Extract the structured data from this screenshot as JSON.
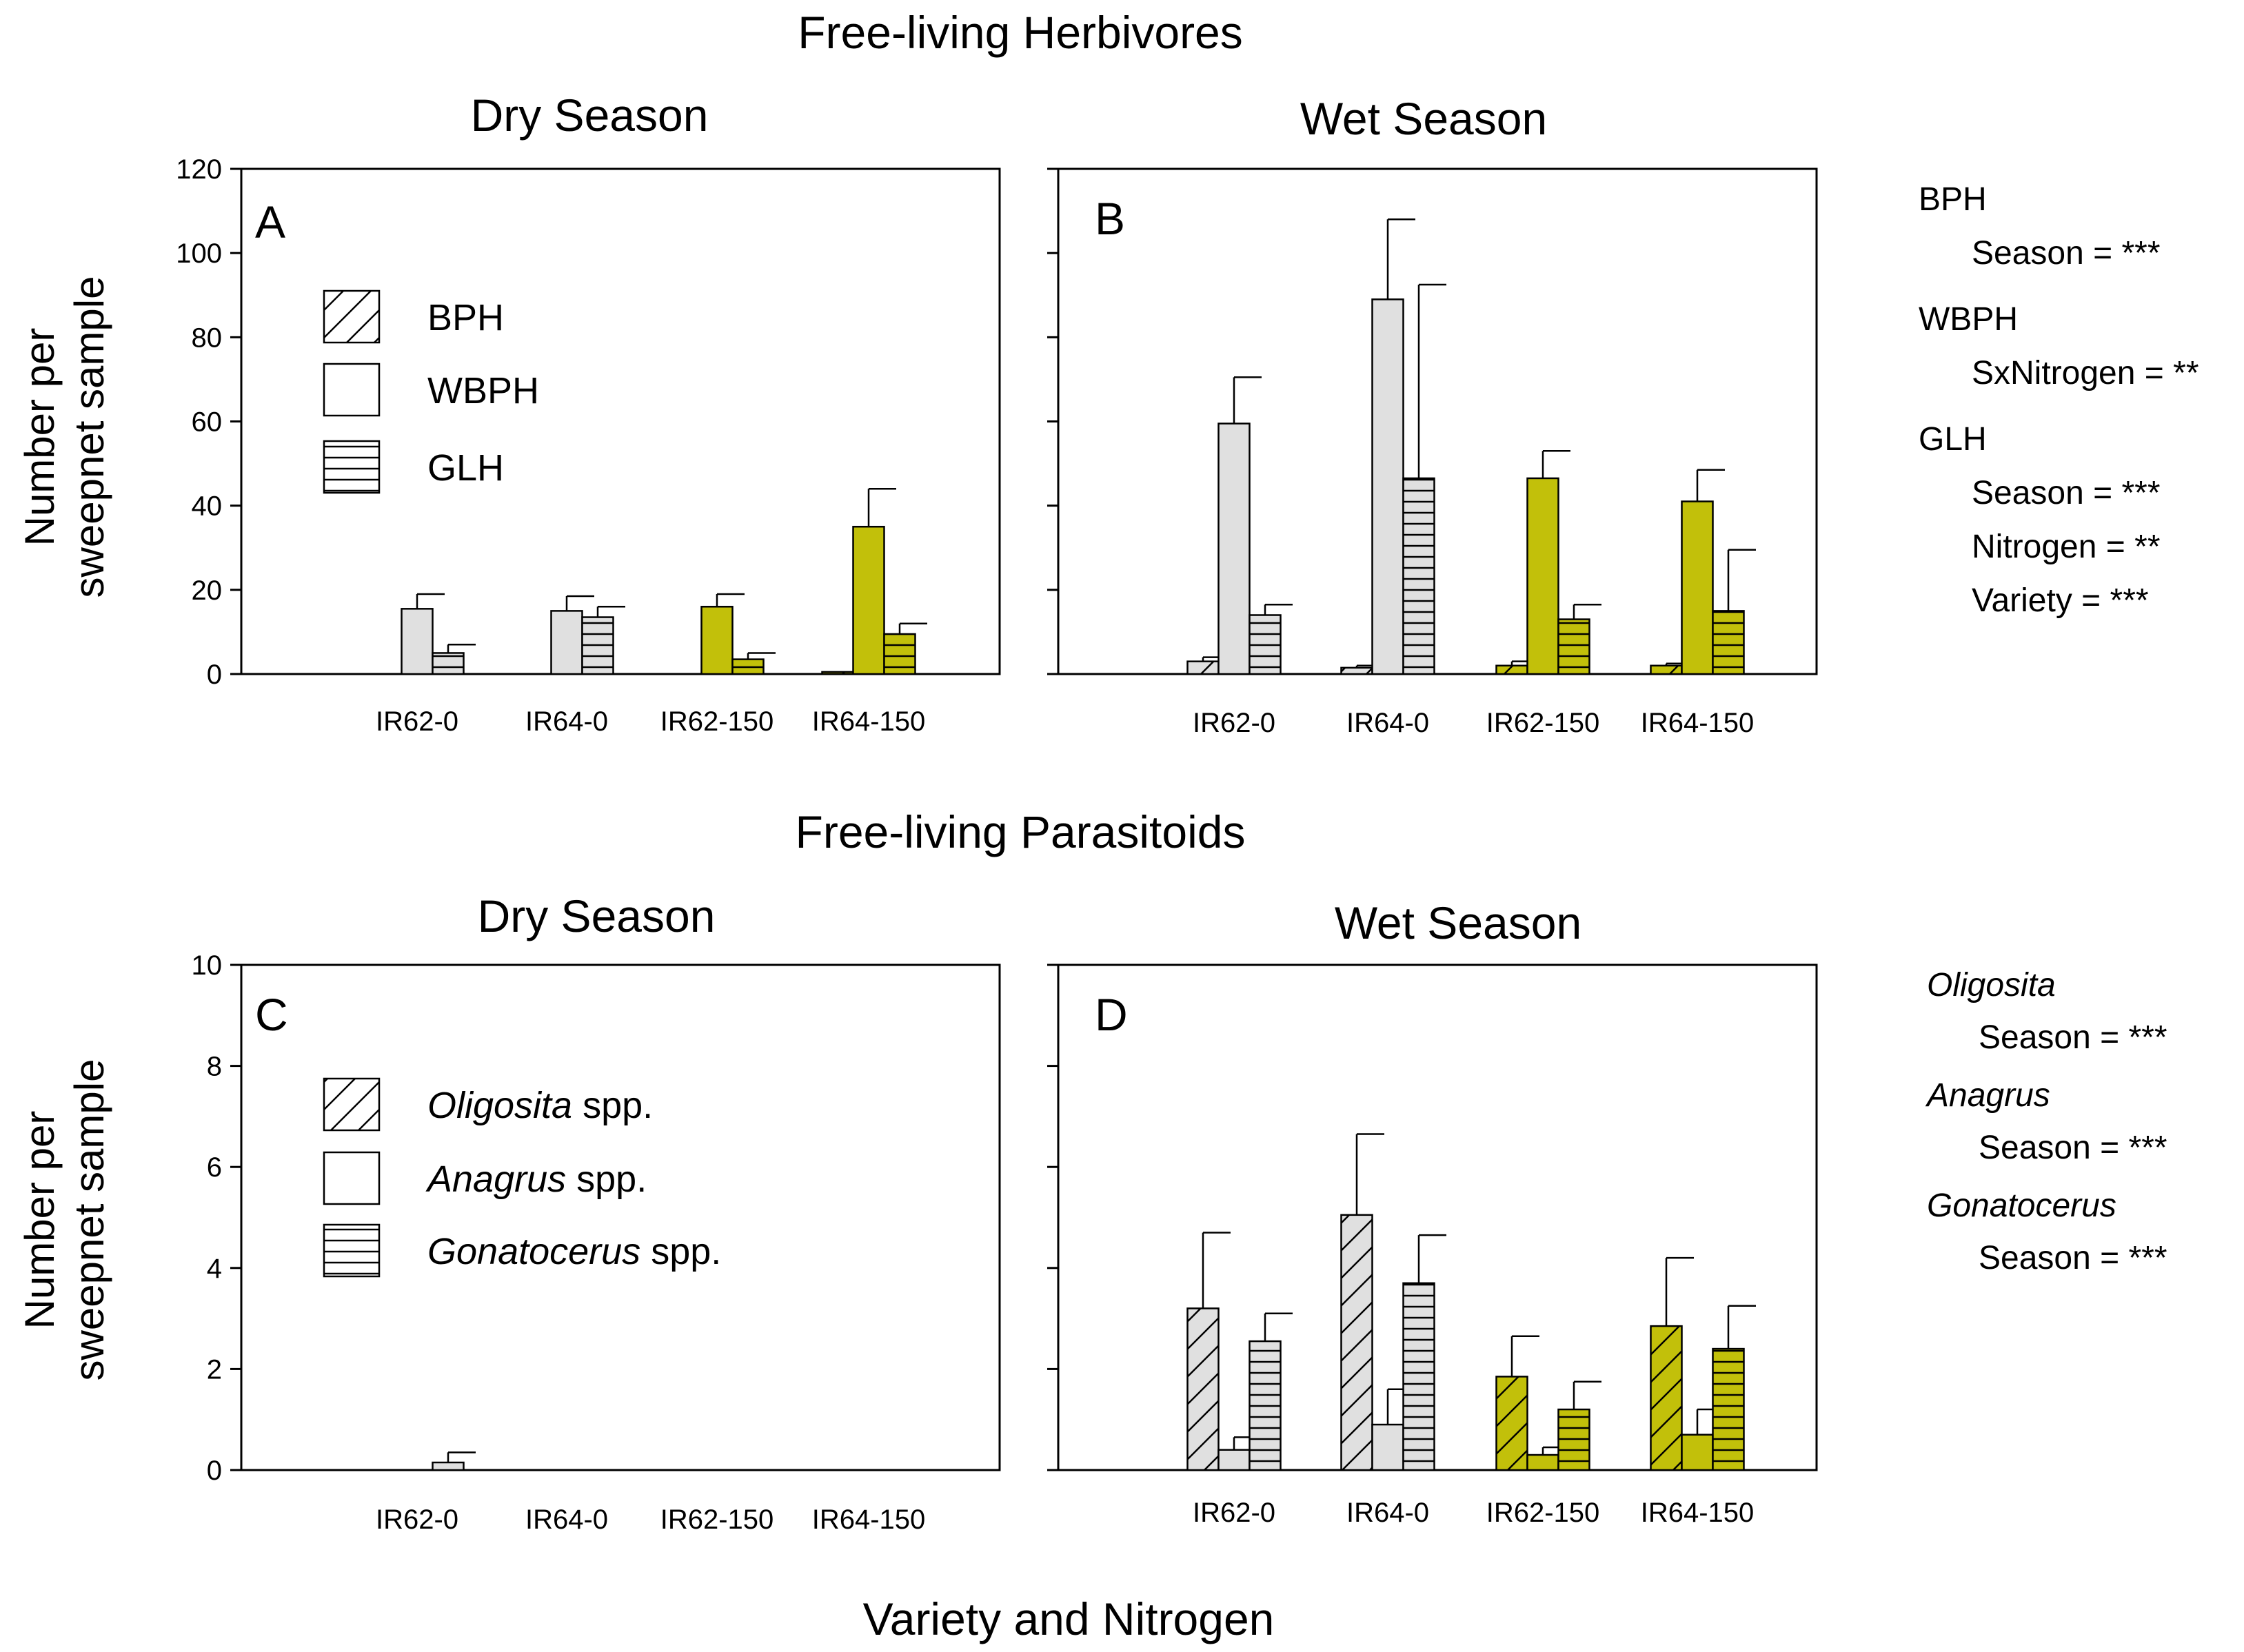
{
  "figure": {
    "herbivores_title": "Free-living Herbivores",
    "parasitoids_title": "Free-living Parasitoids",
    "x_axis_label": "Variety and Nitrogen"
  },
  "colors": {
    "unfertilized_fill": "#e0e0e0",
    "fertilized_fill": "#c2c00a",
    "stroke": "#000000"
  },
  "chart_data": [
    {
      "panel": "A",
      "type": "bar",
      "title": "Dry Season",
      "ylabel": "Number per sweepnet sample",
      "xlabel": "",
      "ylim": [
        0,
        120
      ],
      "yticks": [
        0,
        20,
        40,
        60,
        80,
        100,
        120
      ],
      "categories": [
        "IR62-0",
        "IR64-0",
        "IR62-150",
        "IR64-150"
      ],
      "series": [
        {
          "name": "BPH",
          "pattern": "diagonal",
          "values": [
            0,
            0,
            0,
            0.5
          ],
          "errors": [
            0,
            0,
            0,
            0
          ]
        },
        {
          "name": "WBPH",
          "pattern": "none",
          "values": [
            15.5,
            15,
            16,
            35
          ],
          "errors": [
            3.5,
            3.5,
            3,
            9
          ]
        },
        {
          "name": "GLH",
          "pattern": "horizontal",
          "values": [
            5,
            13.5,
            3.5,
            9.5
          ],
          "errors": [
            2,
            2.5,
            1.5,
            2.5
          ]
        }
      ],
      "legend": {
        "position": "top-left",
        "entries": [
          "BPH",
          "WBPH",
          "GLH"
        ]
      }
    },
    {
      "panel": "B",
      "type": "bar",
      "title": "Wet Season",
      "ylabel": "",
      "xlabel": "",
      "ylim": [
        0,
        120
      ],
      "categories": [
        "IR62-0",
        "IR64-0",
        "IR62-150",
        "IR64-150"
      ],
      "series": [
        {
          "name": "BPH",
          "pattern": "diagonal",
          "values": [
            3,
            1.5,
            2,
            2
          ],
          "errors": [
            1,
            0.5,
            1,
            0.5
          ]
        },
        {
          "name": "WBPH",
          "pattern": "none",
          "values": [
            59.5,
            89,
            46.5,
            41
          ],
          "errors": [
            11,
            19,
            6.5,
            7.5
          ]
        },
        {
          "name": "GLH",
          "pattern": "horizontal",
          "values": [
            14,
            46.5,
            13,
            15
          ],
          "errors": [
            2.5,
            46,
            3.5,
            14.5
          ]
        }
      ]
    },
    {
      "panel": "C",
      "type": "bar",
      "title": "Dry Season",
      "ylabel": "Number per sweepnet sample",
      "xlabel": "",
      "ylim": [
        0,
        10
      ],
      "yticks": [
        0,
        2,
        4,
        6,
        8,
        10
      ],
      "categories": [
        "IR62-0",
        "IR64-0",
        "IR62-150",
        "IR64-150"
      ],
      "series": [
        {
          "name": "Oligosita spp.",
          "pattern": "diagonal",
          "values": [
            0,
            0,
            0,
            0
          ],
          "errors": [
            0,
            0,
            0,
            0
          ]
        },
        {
          "name": "Anagrus spp.",
          "pattern": "none",
          "values": [
            0,
            0,
            0,
            0
          ],
          "errors": [
            0,
            0,
            0,
            0
          ]
        },
        {
          "name": "Gonatocerus spp.",
          "pattern": "horizontal",
          "values": [
            0.15,
            0,
            0,
            0
          ],
          "errors": [
            0.2,
            0,
            0,
            0
          ]
        }
      ],
      "legend": {
        "position": "top-left",
        "entries": [
          "Oligosita spp.",
          "Anagrus spp.",
          "Gonatocerus spp."
        ]
      }
    },
    {
      "panel": "D",
      "type": "bar",
      "title": "Wet Season",
      "ylabel": "",
      "xlabel": "",
      "ylim": [
        0,
        10
      ],
      "categories": [
        "IR62-0",
        "IR64-0",
        "IR62-150",
        "IR64-150"
      ],
      "series": [
        {
          "name": "Oligosita spp.",
          "pattern": "diagonal",
          "values": [
            3.2,
            5.05,
            1.85,
            2.85
          ],
          "errors": [
            1.5,
            1.6,
            0.8,
            1.35
          ]
        },
        {
          "name": "Anagrus spp.",
          "pattern": "none",
          "values": [
            0.4,
            0.9,
            0.3,
            0.7
          ],
          "errors": [
            0.25,
            0.7,
            0.15,
            0.5
          ]
        },
        {
          "name": "Gonatocerus spp.",
          "pattern": "horizontal",
          "values": [
            2.55,
            3.7,
            1.2,
            2.4
          ],
          "errors": [
            0.55,
            0.95,
            0.55,
            0.85
          ]
        }
      ]
    }
  ],
  "stats": {
    "herbivores": [
      {
        "species": "BPH",
        "italic": false,
        "tests": [
          "Season = ***"
        ]
      },
      {
        "species": "WBPH",
        "italic": false,
        "tests": [
          "SxNitrogen = **"
        ]
      },
      {
        "species": "GLH",
        "italic": false,
        "tests": [
          "Season = ***",
          "Nitrogen = **",
          "Variety = ***"
        ]
      }
    ],
    "parasitoids": [
      {
        "species": "Oligosita",
        "italic": true,
        "tests": [
          "Season = ***"
        ]
      },
      {
        "species": "Anagrus",
        "italic": true,
        "tests": [
          "Season = ***"
        ]
      },
      {
        "species": "Gonatocerus",
        "italic": true,
        "tests": [
          "Season = ***"
        ]
      }
    ]
  },
  "legend_parasitoid_suffix": "spp."
}
